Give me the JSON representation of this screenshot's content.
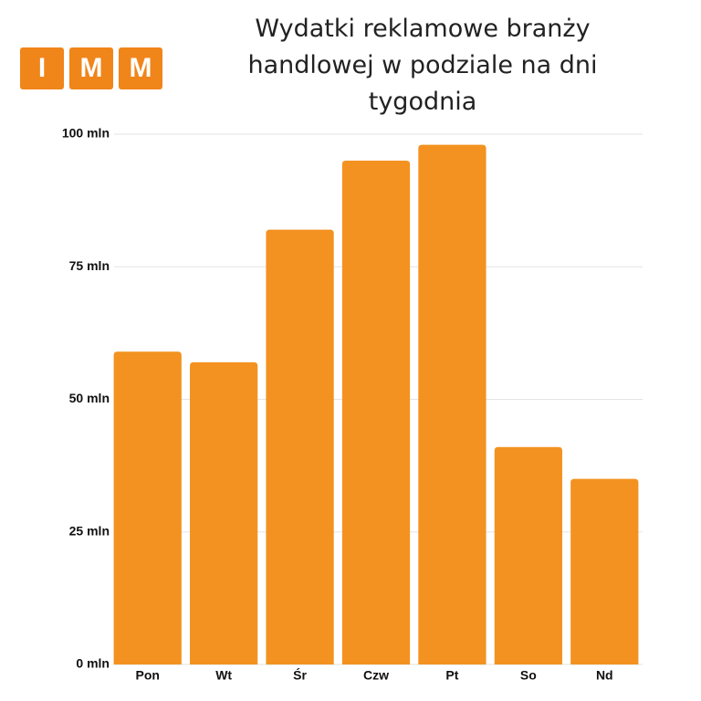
{
  "logo": {
    "letters": [
      "I",
      "M",
      "M"
    ]
  },
  "chart_data": {
    "type": "bar",
    "title": "Wydatki reklamowe branży handlowej w podziale na dni tygodnia",
    "categories": [
      "Pon",
      "Wt",
      "Śr",
      "Czw",
      "Pt",
      "So",
      "Nd"
    ],
    "values": [
      59,
      57,
      82,
      95,
      98,
      41,
      35
    ],
    "color": "#f39220",
    "ylim": [
      0,
      100
    ],
    "yticks": [
      {
        "value": 0,
        "label": "0 mln"
      },
      {
        "value": 25,
        "label": "25 mln"
      },
      {
        "value": 50,
        "label": "50 mln"
      },
      {
        "value": 75,
        "label": "75 mln"
      },
      {
        "value": 100,
        "label": "100 mln"
      }
    ],
    "grid": true
  }
}
